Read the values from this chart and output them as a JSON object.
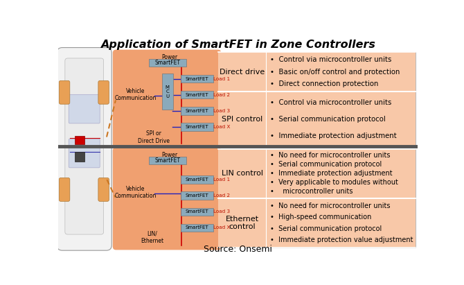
{
  "title": "Application of SmartFET in Zone Controllers",
  "bg_color": "#ffffff",
  "orange_bg": "#F0A070",
  "panel_bg": "#F8C8A8",
  "box_color": "#8BAABB",
  "red_line": "#CC0000",
  "blue_line": "#2222BB",
  "divider_color": "#555555",
  "source_text": "Source: Onsemi",
  "sections": [
    {
      "label": "Direct drive",
      "bullets": [
        "Control via microcontroller units",
        "Basic on/off control and protection",
        "Direct connection protection"
      ]
    },
    {
      "label": "SPI control",
      "bullets": [
        "Control via microcontroller units",
        "Serial communication protocol",
        "Immediate protection adjustment"
      ]
    },
    {
      "label": "LIN control",
      "bullets": [
        "No need for microcontroller units",
        "Serial communication protocol",
        "Immediate protection adjustment",
        "Very applicable to modules without",
        "  microcontroller units"
      ]
    },
    {
      "label": "Ethernet\ncontrol",
      "bullets": [
        "No need for microcontroller units",
        "High-speed communication",
        "Serial communication protocol",
        "Immediate protection value adjustment"
      ]
    }
  ],
  "top_loads": [
    "Load 1",
    "Load 2",
    "Load 3",
    "Load X"
  ],
  "bot_loads": [
    "Load 1",
    "Load 2",
    "Load 3",
    "Load X"
  ]
}
